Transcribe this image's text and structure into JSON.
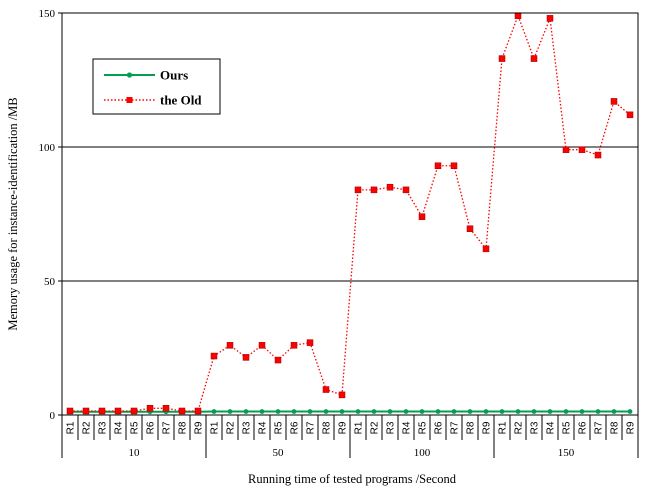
{
  "chart_data": {
    "type": "line",
    "title": "",
    "xlabel": "Running time of tested programs /Second",
    "ylabel": "Memory usage for instance-identification /MB",
    "ylim": [
      0,
      150
    ],
    "yticks": [
      0,
      50,
      100,
      150
    ],
    "grid": "horizontal major gridlines",
    "legend_position": "top-left inside plot",
    "groups": [
      {
        "label": "10",
        "categories": [
          "R1",
          "R2",
          "R3",
          "R4",
          "R5",
          "R6",
          "R7",
          "R8",
          "R9"
        ]
      },
      {
        "label": "50",
        "categories": [
          "R1",
          "R2",
          "R3",
          "R4",
          "R5",
          "R6",
          "R7",
          "R8",
          "R9"
        ]
      },
      {
        "label": "100",
        "categories": [
          "R1",
          "R2",
          "R3",
          "R4",
          "R5",
          "R6",
          "R7",
          "R8",
          "R9"
        ]
      },
      {
        "label": "150",
        "categories": [
          "R1",
          "R2",
          "R3",
          "R4",
          "R5",
          "R6",
          "R7",
          "R8",
          "R9"
        ]
      }
    ],
    "series": [
      {
        "name": "Ours",
        "color": "#00a050",
        "marker": "circle",
        "line_style": "solid",
        "values": [
          1.2,
          1.2,
          1.2,
          1.2,
          1.2,
          1.2,
          1.2,
          1.2,
          1.2,
          1.3,
          1.3,
          1.3,
          1.3,
          1.3,
          1.3,
          1.3,
          1.3,
          1.3,
          1.3,
          1.3,
          1.3,
          1.3,
          1.3,
          1.3,
          1.3,
          1.3,
          1.3,
          1.3,
          1.3,
          1.3,
          1.3,
          1.3,
          1.3,
          1.3,
          1.3,
          1.3
        ]
      },
      {
        "name": "the Old",
        "color": "#ff0000",
        "marker": "square",
        "line_style": "dotted",
        "values": [
          1.5,
          1.5,
          1.5,
          1.5,
          1.5,
          2.5,
          2.5,
          1.5,
          1.5,
          22,
          26,
          21.5,
          26,
          20.5,
          26,
          27,
          9.5,
          7.5,
          84,
          84,
          85,
          84,
          74,
          93,
          93,
          69.5,
          62,
          133,
          149,
          133,
          148,
          99,
          99,
          97,
          117,
          112
        ]
      }
    ]
  }
}
